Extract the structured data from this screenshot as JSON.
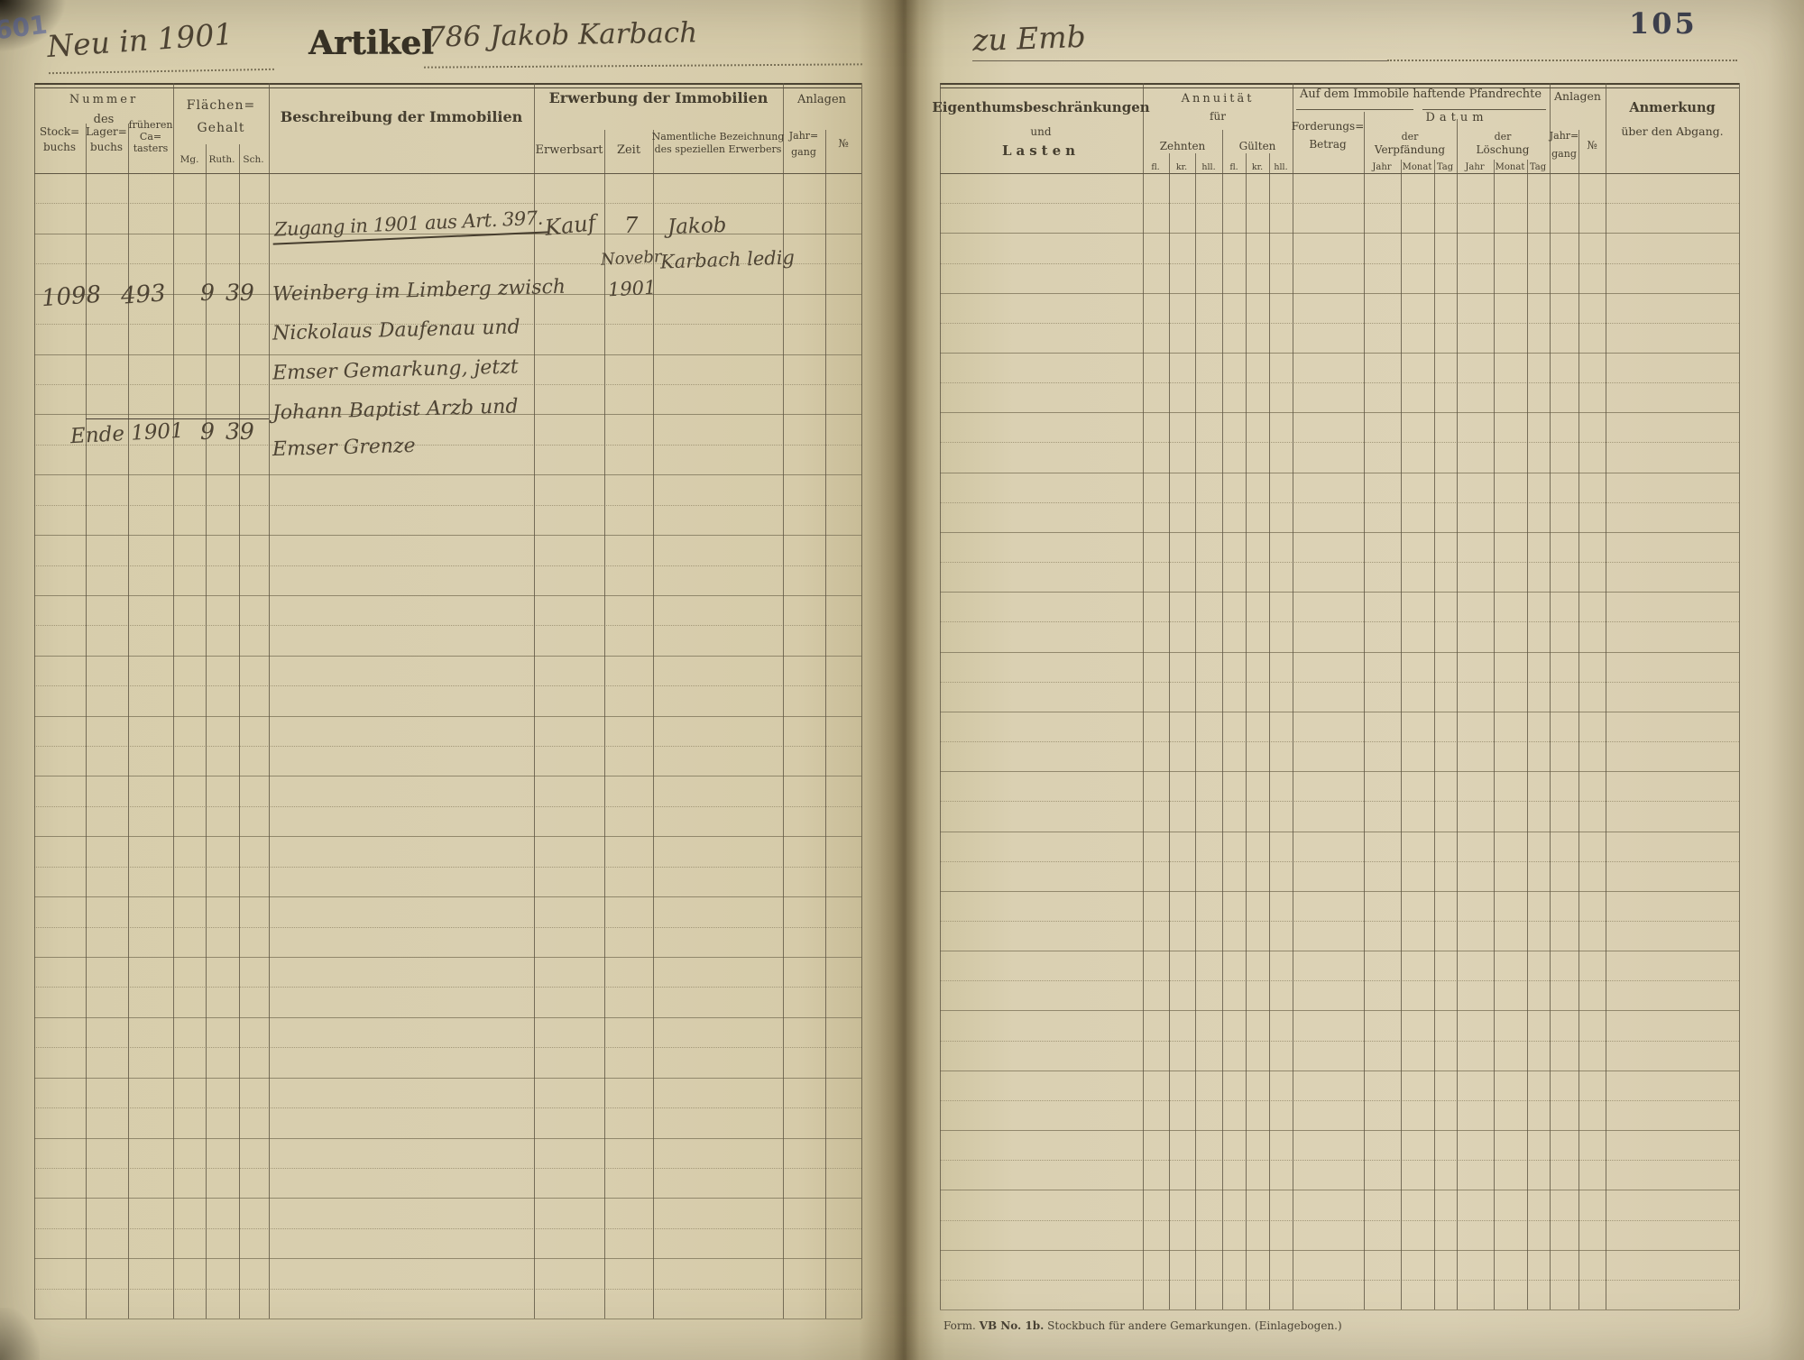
{
  "page": {
    "stamp": "601",
    "page_number": "105",
    "footer_form": "Form.",
    "footer_no": "VB No. 1b.",
    "footer_rest": "Stockbuch für andere Gemarkungen. (Einlagebogen.)"
  },
  "headline": {
    "neu": "Neu in 1901",
    "artikel_label": "Artikel",
    "artikel_value": "786 Jakob Karbach",
    "zu": "zu Emb"
  },
  "left_table": {
    "nummer": "Nummer",
    "des": "des",
    "stock1": "Stock=",
    "stock2": "buchs",
    "lager1": "Lager=",
    "lager2": "buchs",
    "frueh1": "früheren",
    "frueh2": "Ca=",
    "frueh3": "tasters",
    "flaechen1": "Flächen=",
    "flaechen2": "Gehalt",
    "mg": "Mg.",
    "ruth": "Ruth.",
    "sch": "Sch.",
    "beschreibung": "Beschreibung der Immobilien",
    "erwerbung": "Erwerbung der Immobilien",
    "erwerbsart": "Erwerbsart",
    "zeit": "Zeit",
    "namentlich1": "Namentliche Bezeichnung",
    "namentlich2": "des speziellen Erwerbers",
    "anlagen": "Anlagen",
    "jahrgang1": "Jahr=",
    "jahrgang2": "gang",
    "nr": "№"
  },
  "right_table": {
    "eigenthum1": "Eigenthumsbeschränkungen",
    "eigenthum2": "und",
    "eigenthum3": "Lasten",
    "annuitaet": "Annuität",
    "fuer": "für",
    "zehnten": "Zehnten",
    "guelten": "Gülten",
    "fl": "fl.",
    "kr": "kr.",
    "hll": "hll.",
    "pfandrechte": "Auf dem Immobile haftende Pfandrechte",
    "forderung1": "Forderungs=",
    "forderung2": "Betrag",
    "datum": "Datum",
    "der": "der",
    "verpfaendung": "Verpfändung",
    "loeschung": "Löschung",
    "jahr": "Jahr",
    "monat": "Monat",
    "tag": "Tag",
    "anlagen": "Anlagen",
    "jahrgang1": "Jahr=",
    "jahrgang2": "gang",
    "nr": "№",
    "anmerkung1": "Anmerkung",
    "anmerkung2": "über den Abgang."
  },
  "entries": {
    "zugang": {
      "text": "Zugang in 1901 aus Art. 397.",
      "erwerbsart": "Kauf",
      "zeit": [
        "7",
        "Novebr",
        "1901"
      ],
      "name": [
        "Jakob",
        "Karbach ledig"
      ]
    },
    "main": {
      "stockbuchs": "1098",
      "lagerbuchs": "493",
      "ruth": "9",
      "sch": "39",
      "desc": [
        "Weinberg im Limberg zwisch",
        "Nickolaus Daufenau und",
        "Emser Gemarkung, jetzt",
        "Johann Baptist Arzb und",
        "Emser Grenze"
      ]
    },
    "ende": {
      "label": "Ende 1901",
      "ruth": "9",
      "sch": "39"
    }
  }
}
